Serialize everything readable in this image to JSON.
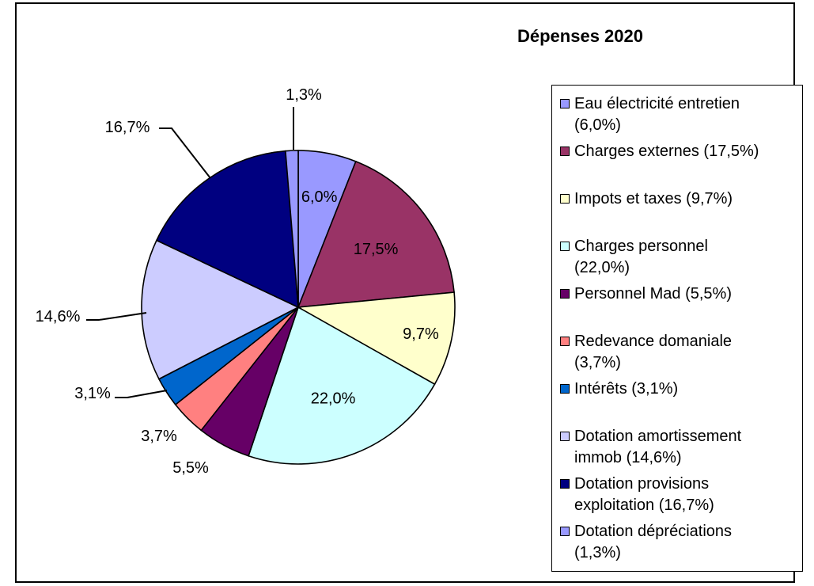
{
  "chart_data": {
    "type": "pie",
    "title": "Dépenses 2020",
    "legend_position": "right",
    "slices": [
      {
        "name": "Eau électricité entretien",
        "legend_line1": "Eau électricité entretien",
        "legend_line2": "(6,0%)",
        "value": 6.0,
        "label": "6,0%",
        "color": "#9999FF"
      },
      {
        "name": "Charges externes",
        "legend_line1": "Charges externes (17,5%)",
        "legend_line2": "",
        "value": 17.5,
        "label": "17,5%",
        "color": "#993366"
      },
      {
        "name": "Impots et taxes",
        "legend_line1": "Impots et taxes (9,7%)",
        "legend_line2": "",
        "value": 9.7,
        "label": "9,7%",
        "color": "#FFFFCC"
      },
      {
        "name": "Charges personnel",
        "legend_line1": "Charges personnel",
        "legend_line2": "(22,0%)",
        "value": 22.0,
        "label": "22,0%",
        "color": "#CCFFFF"
      },
      {
        "name": "Personnel Mad",
        "legend_line1": "Personnel Mad (5,5%)",
        "legend_line2": "",
        "value": 5.5,
        "label": "5,5%",
        "color": "#660066"
      },
      {
        "name": "Redevance domaniale",
        "legend_line1": "Redevance domaniale",
        "legend_line2": "(3,7%)",
        "value": 3.7,
        "label": "3,7%",
        "color": "#FF8080"
      },
      {
        "name": "Intérêts",
        "legend_line1": "Intérêts (3,1%)",
        "legend_line2": "",
        "value": 3.1,
        "label": "3,1%",
        "color": "#0066CC"
      },
      {
        "name": "Dotation amortissement immob",
        "legend_line1": "Dotation amortissement",
        "legend_line2": "immob (14,6%)",
        "value": 14.6,
        "label": "14,6%",
        "color": "#CCCCFF"
      },
      {
        "name": "Dotation provisions exploitation",
        "legend_line1": "Dotation provisions",
        "legend_line2": "exploitation (16,7%)",
        "value": 16.7,
        "label": "16,7%",
        "color": "#000080"
      },
      {
        "name": "Dotation dépréciations",
        "legend_line1": "Dotation dépréciations",
        "legend_line2": "(1,3%)",
        "value": 1.3,
        "label": "1,3%",
        "color": "#9999FF"
      }
    ]
  }
}
